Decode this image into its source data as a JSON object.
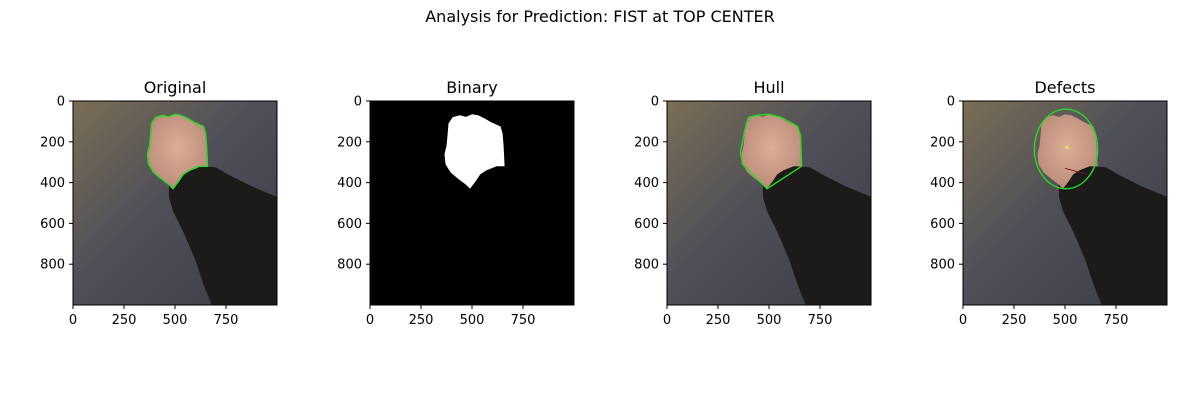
{
  "figure": {
    "suptitle": "Analysis for Prediction: FIST at TOP CENTER"
  },
  "chart_data": [
    {
      "type": "image",
      "title": "Original",
      "xlim": [
        0,
        1000
      ],
      "ylim": [
        1000,
        0
      ],
      "xticks": [
        0,
        250,
        500,
        750
      ],
      "yticks": [
        0,
        200,
        400,
        600,
        800
      ],
      "overlay": "contour",
      "overlay_color": "#22dd22"
    },
    {
      "type": "image",
      "title": "Binary",
      "xlim": [
        0,
        1000
      ],
      "ylim": [
        1000,
        0
      ],
      "xticks": [
        0,
        250,
        500,
        750
      ],
      "yticks": [
        0,
        200,
        400,
        600,
        800
      ],
      "overlay": "mask",
      "overlay_color": "#ffffff"
    },
    {
      "type": "image",
      "title": "Hull",
      "xlim": [
        0,
        1000
      ],
      "ylim": [
        1000,
        0
      ],
      "xticks": [
        0,
        250,
        500,
        750
      ],
      "yticks": [
        0,
        200,
        400,
        600,
        800
      ],
      "overlay": "hull",
      "overlay_color": "#22dd22"
    },
    {
      "type": "image",
      "title": "Defects",
      "xlim": [
        0,
        1000
      ],
      "ylim": [
        1000,
        0
      ],
      "xticks": [
        0,
        250,
        500,
        750
      ],
      "yticks": [
        0,
        200,
        400,
        600,
        800
      ],
      "overlay": "ellipse",
      "overlay_color": "#22dd22",
      "ellipse": {
        "cx": 505,
        "cy": 235,
        "rx": 155,
        "ry": 195
      },
      "center_point": {
        "x": 510,
        "y": 228
      }
    }
  ],
  "colors": {
    "bg_dark": "#3d3f4a",
    "bg_light": "#6a6450",
    "skin": "#d4a48e",
    "sleeve": "#1c1b19",
    "binary_bg": "#000000"
  }
}
